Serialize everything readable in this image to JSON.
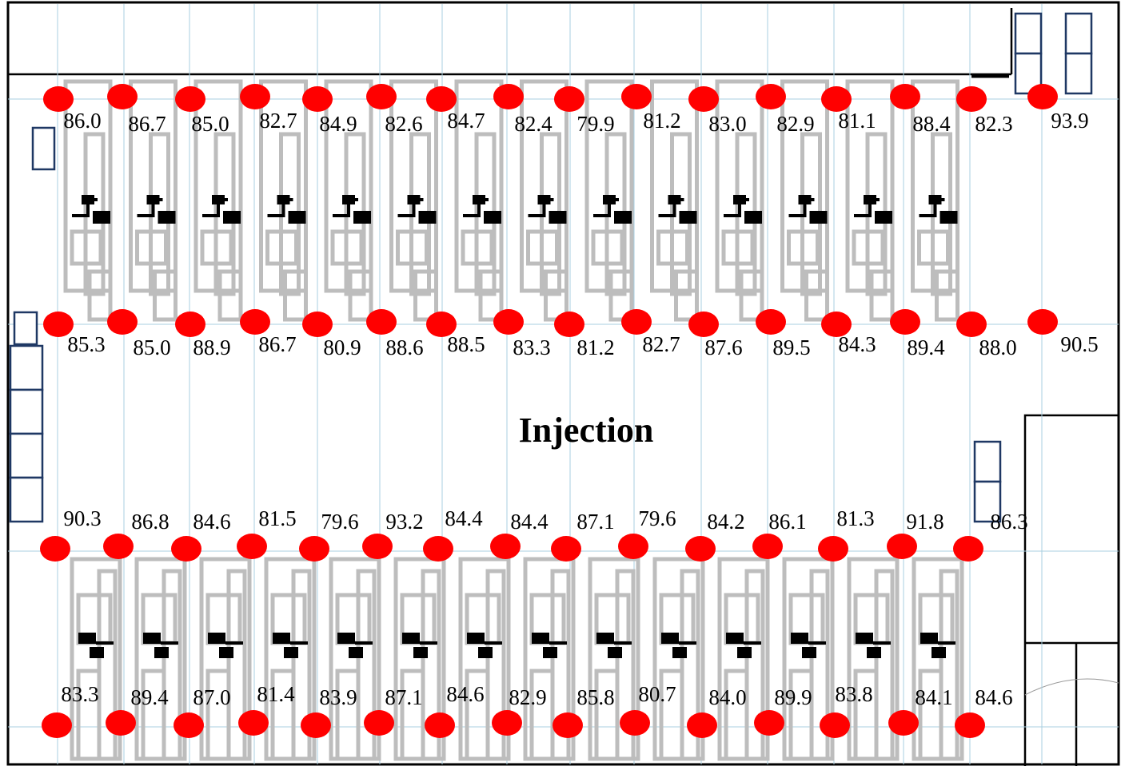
{
  "title": "Injection",
  "rows": [
    [
      "86.0",
      "86.7",
      "85.0",
      "82.7",
      "84.9",
      "82.6",
      "84.7",
      "82.4",
      "79.9",
      "81.2",
      "83.0",
      "82.9",
      "81.1",
      "88.4",
      "82.3",
      "93.9"
    ],
    [
      "85.3",
      "85.0",
      "88.9",
      "86.7",
      "80.9",
      "88.6",
      "88.5",
      "83.3",
      "81.2",
      "82.7",
      "87.6",
      "89.5",
      "84.3",
      "89.4",
      "88.0",
      "90.5"
    ],
    [
      "90.3",
      "86.8",
      "84.6",
      "81.5",
      "79.6",
      "93.2",
      "84.4",
      "84.4",
      "87.1",
      "79.6",
      "84.2",
      "86.1",
      "81.3",
      "91.8",
      "86.3"
    ],
    [
      "83.3",
      "89.4",
      "87.0",
      "81.4",
      "83.9",
      "87.1",
      "84.6",
      "82.9",
      "85.8",
      "80.7",
      "84.0",
      "89.9",
      "83.8",
      "84.1",
      "84.6"
    ]
  ]
}
